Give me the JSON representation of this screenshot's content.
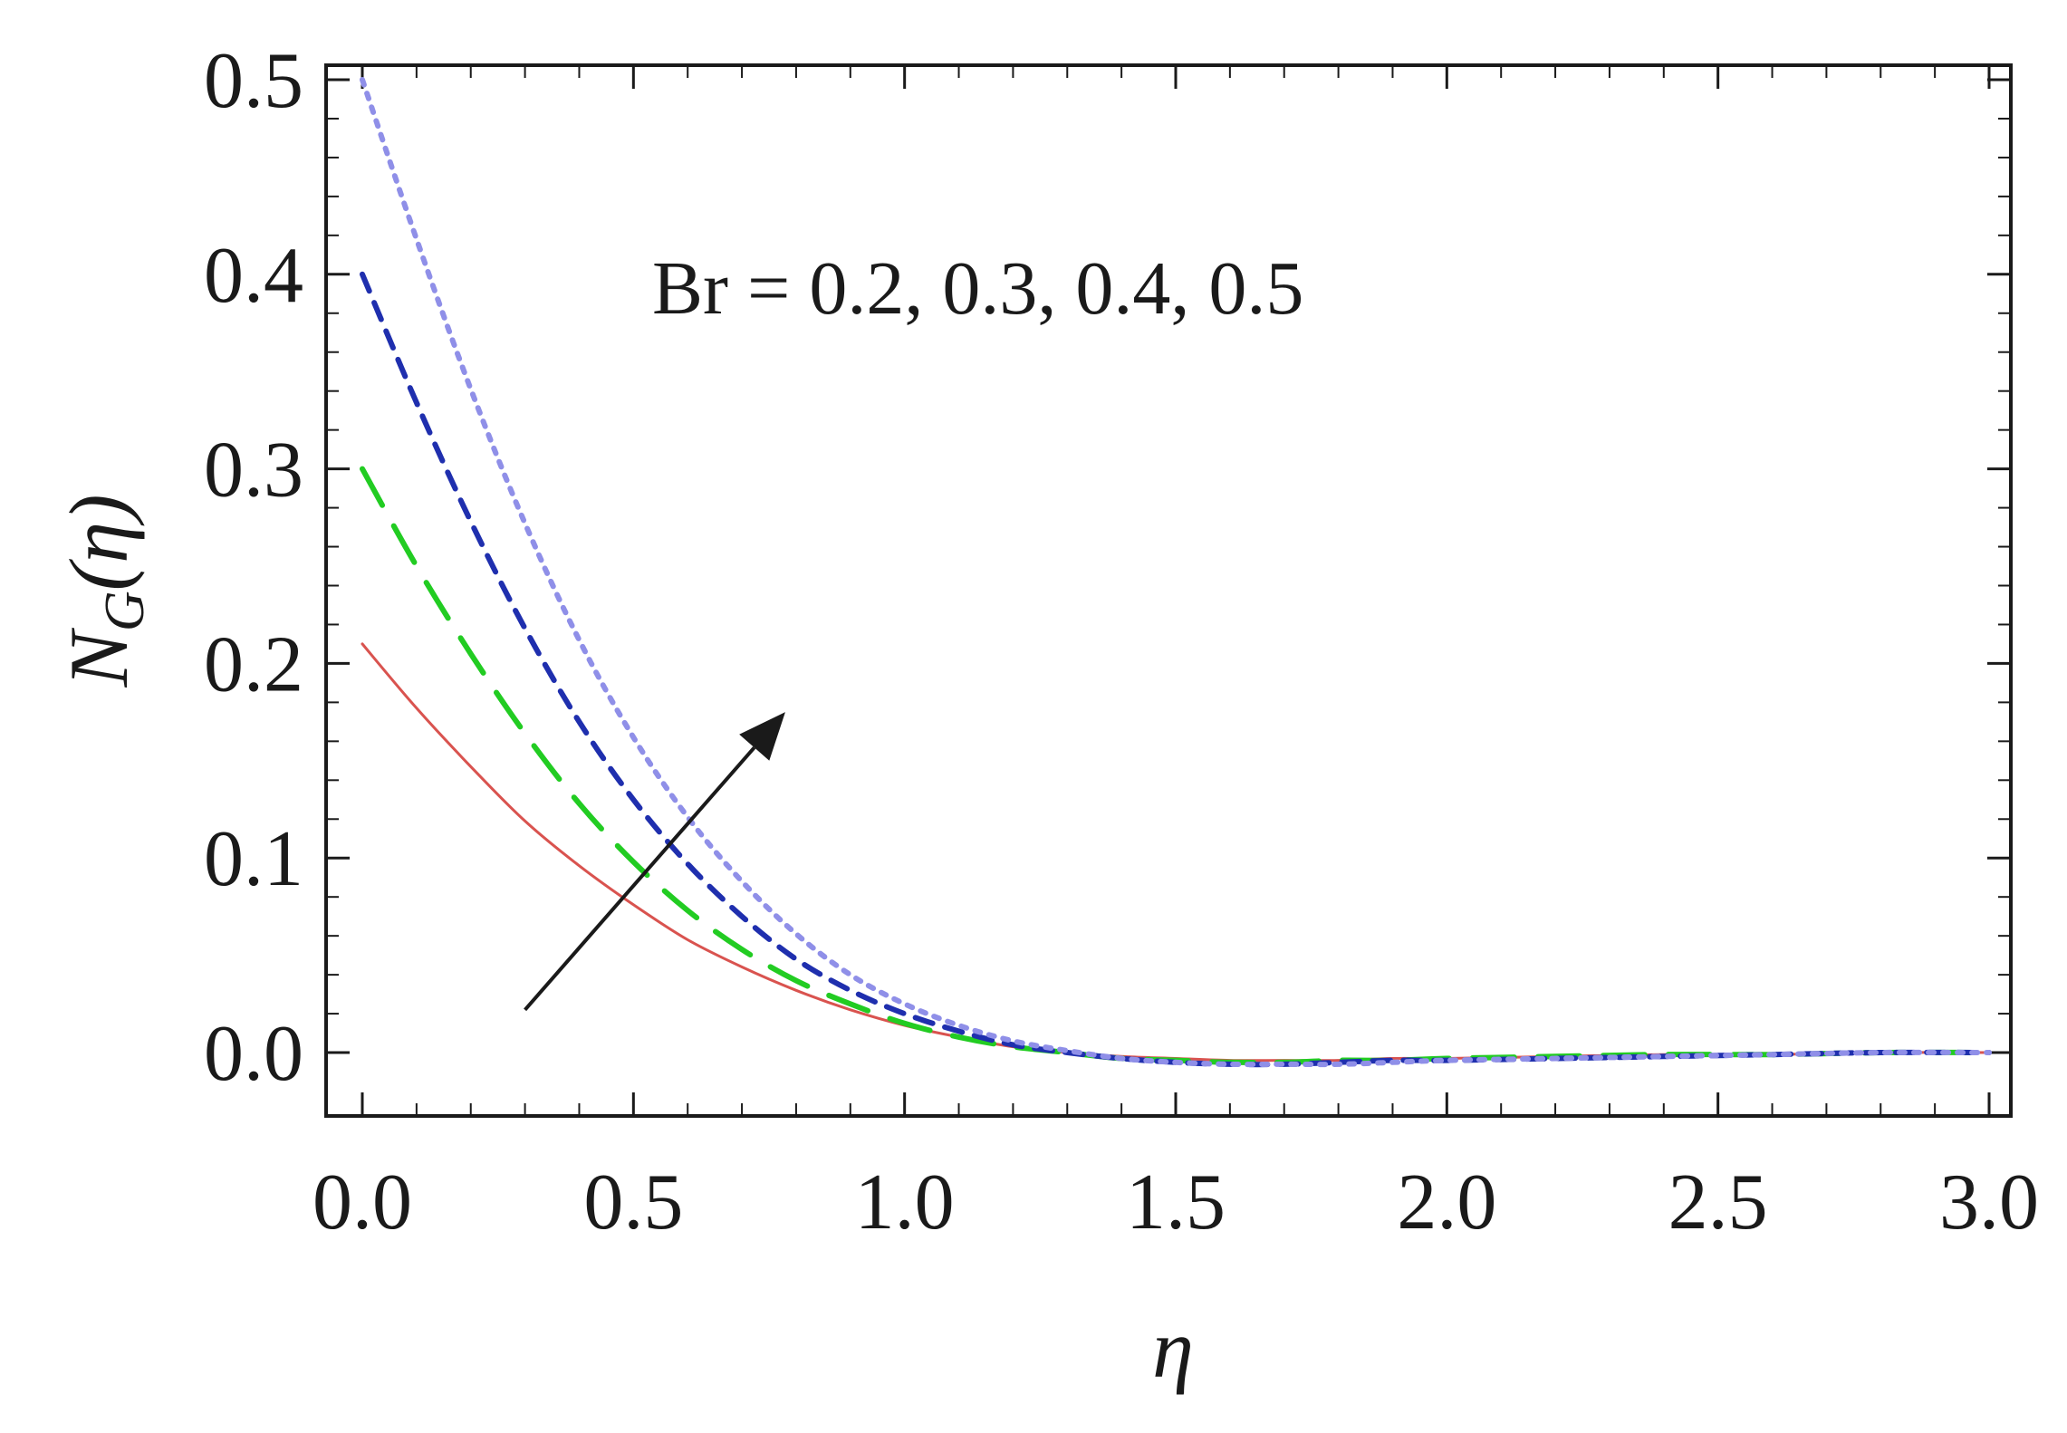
{
  "chart_data": {
    "type": "line",
    "xlabel": "η",
    "ylabel": "N_G(η)",
    "ylabel_main": "N",
    "ylabel_sub": "G",
    "ylabel_arg": "(η)",
    "xlim": [
      0,
      3
    ],
    "ylim": [
      -0.02,
      0.5
    ],
    "x_ticks": [
      0.0,
      0.5,
      1.0,
      1.5,
      2.0,
      2.5,
      3.0
    ],
    "x_tick_labels": [
      "0.0",
      "0.5",
      "1.0",
      "1.5",
      "2.0",
      "2.5",
      "3.0"
    ],
    "y_ticks": [
      0.0,
      0.1,
      0.2,
      0.3,
      0.4,
      0.5
    ],
    "y_tick_labels": [
      "0.0",
      "0.1",
      "0.2",
      "0.3",
      "0.4",
      "0.5"
    ],
    "grid": false,
    "annotation": "Br = 0.2, 0.3, 0.4, 0.5",
    "arrow": {
      "from": [
        0.3,
        0.022
      ],
      "to": [
        0.78,
        0.175
      ]
    },
    "x": [
      0.0,
      0.1,
      0.2,
      0.3,
      0.4,
      0.5,
      0.6,
      0.7,
      0.8,
      0.9,
      1.0,
      1.1,
      1.2,
      1.3,
      1.4,
      1.5,
      1.6,
      1.7,
      1.8,
      1.9,
      2.0,
      2.2,
      2.4,
      2.6,
      2.8,
      3.0
    ],
    "series": [
      {
        "color": "#d9534f",
        "dash": "",
        "values": [
          0.21,
          0.177,
          0.147,
          0.119,
          0.096,
          0.076,
          0.058,
          0.044,
          0.032,
          0.022,
          0.014,
          0.008,
          0.003,
          0.0,
          -0.002,
          -0.003,
          -0.004,
          -0.004,
          -0.004,
          -0.003,
          -0.003,
          -0.002,
          -0.001,
          -0.001,
          0.0,
          0.0
        ]
      },
      {
        "color": "#22cc22",
        "dash": "46 26",
        "values": [
          0.3,
          0.25,
          0.205,
          0.164,
          0.128,
          0.098,
          0.073,
          0.053,
          0.037,
          0.025,
          0.015,
          0.008,
          0.003,
          0.0,
          -0.003,
          -0.004,
          -0.005,
          -0.005,
          -0.004,
          -0.004,
          -0.003,
          -0.002,
          -0.001,
          -0.001,
          0.0,
          0.0
        ]
      },
      {
        "color": "#1f2fae",
        "dash": "20 14",
        "values": [
          0.4,
          0.334,
          0.273,
          0.218,
          0.17,
          0.13,
          0.097,
          0.07,
          0.048,
          0.032,
          0.02,
          0.011,
          0.004,
          0.0,
          -0.003,
          -0.005,
          -0.006,
          -0.006,
          -0.005,
          -0.004,
          -0.004,
          -0.003,
          -0.002,
          -0.001,
          0.0,
          0.0
        ]
      },
      {
        "color": "#8f8fe8",
        "dash": "6 10",
        "values": [
          0.5,
          0.418,
          0.341,
          0.272,
          0.212,
          0.162,
          0.121,
          0.088,
          0.061,
          0.04,
          0.025,
          0.014,
          0.006,
          0.001,
          -0.003,
          -0.005,
          -0.006,
          -0.006,
          -0.006,
          -0.005,
          -0.004,
          -0.003,
          -0.002,
          -0.001,
          0.0,
          0.0
        ]
      }
    ]
  }
}
